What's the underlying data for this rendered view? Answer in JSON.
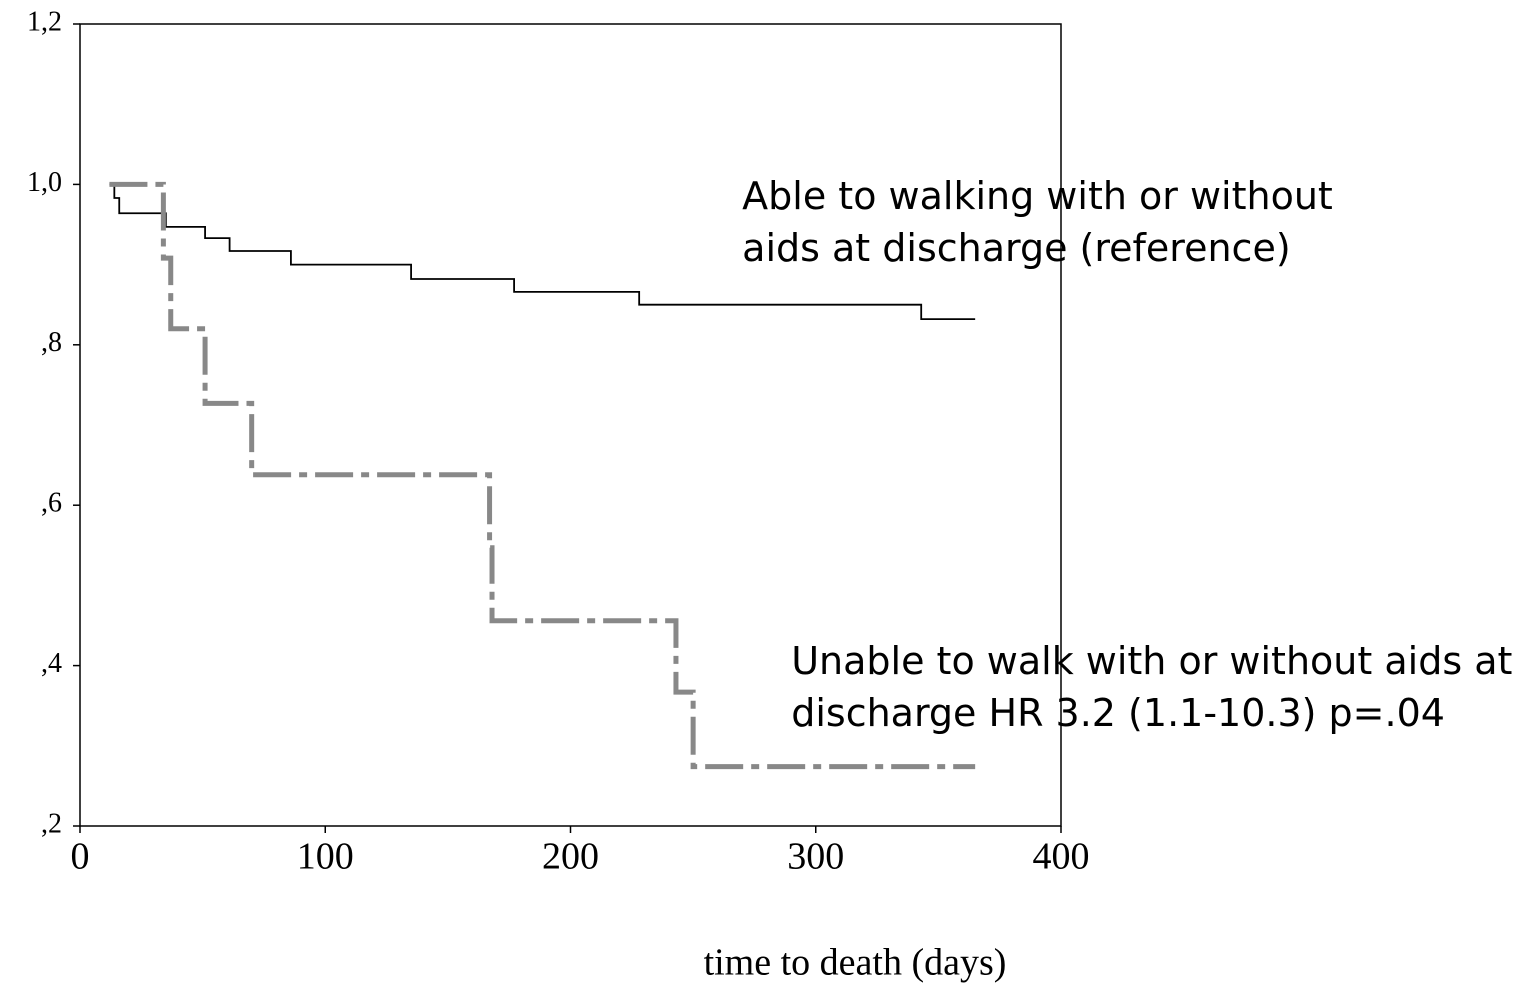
{
  "chart_data": {
    "type": "step",
    "x_label": "time to death (days)",
    "xlim": [
      0,
      400
    ],
    "xticks": [
      0,
      100,
      200,
      300,
      400
    ],
    "ylim": [
      0.2,
      1.2
    ],
    "yticks": [
      {
        "value": 0.2,
        "label": ",2"
      },
      {
        "value": 0.4,
        "label": ",4"
      },
      {
        "value": 0.6,
        "label": ",6"
      },
      {
        "value": 0.8,
        "label": ",8"
      },
      {
        "value": 1.0,
        "label": "1,0"
      },
      {
        "value": 1.2,
        "label": "1,2"
      }
    ],
    "series": [
      {
        "color": "#000000",
        "dash": "solid",
        "x": [
          12,
          14,
          16,
          35,
          51,
          61,
          86,
          135,
          177,
          228,
          343,
          365
        ],
        "values": [
          1.0,
          0.983,
          0.964,
          0.947,
          0.933,
          0.917,
          0.9,
          0.882,
          0.866,
          0.85,
          0.832,
          0.832
        ]
      },
      {
        "color": "#888888",
        "dash": "dashdot",
        "x": [
          12,
          34,
          37,
          51,
          70,
          167,
          168,
          243,
          250,
          365
        ],
        "values": [
          1.0,
          0.908,
          0.82,
          0.727,
          0.638,
          0.547,
          0.456,
          0.367,
          0.274,
          0.274
        ]
      }
    ],
    "annotations": [
      {
        "lines": [
          "Able to walking with or without",
          "aids at discharge (reference)"
        ],
        "x": 270,
        "y": 1.0
      },
      {
        "lines": [
          "Unable to walk with or without aids at",
          "discharge HR 3.2 (1.1-10.3) p=.04"
        ],
        "x": 290,
        "y": 0.42
      }
    ]
  }
}
